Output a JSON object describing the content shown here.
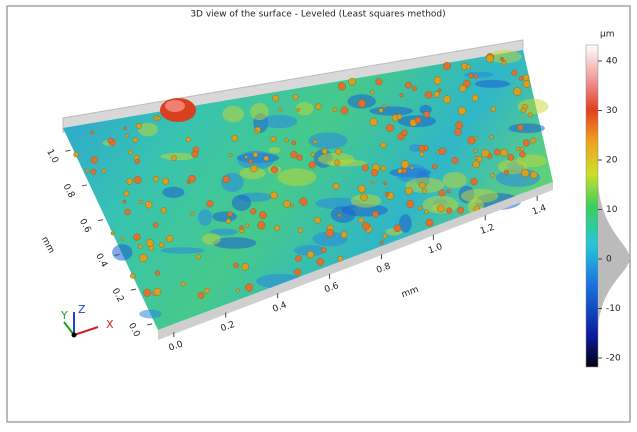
{
  "title": "3D view of the surface - Leveled (Least squares method)",
  "x_axis": {
    "label": "mm",
    "ticks": [
      "0.0",
      "0.2",
      "0.4",
      "0.6",
      "0.8",
      "1.0",
      "1.2",
      "1.4"
    ]
  },
  "y_axis": {
    "label": "mm",
    "ticks": [
      "0.0",
      "0.2",
      "0.4",
      "0.6",
      "0.8",
      "1.0"
    ]
  },
  "colorbar": {
    "unit": "µm",
    "ticks": [
      "40",
      "30",
      "20",
      "10",
      "0",
      "-10",
      "-20"
    ]
  },
  "triad": {
    "x": "X",
    "y": "Y",
    "z": "Z"
  }
}
